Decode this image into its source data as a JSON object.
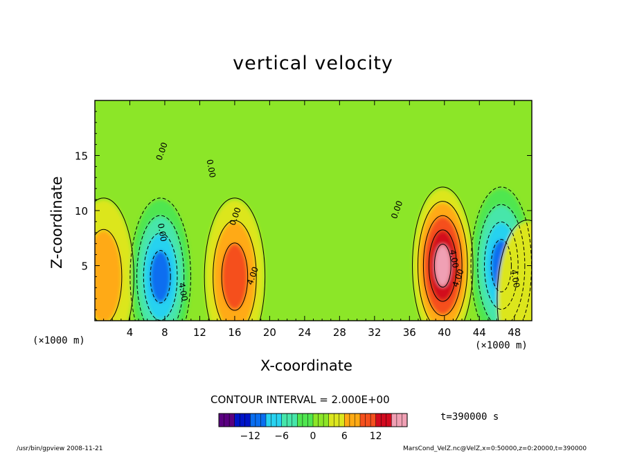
{
  "chart_data": {
    "type": "heatmap",
    "title": "vertical velocity",
    "xlabel": "X-coordinate",
    "ylabel": "Z-coordinate",
    "x_unit": "(×1000 m)",
    "y_unit": "(×1000 m)",
    "xlim": [
      0,
      50
    ],
    "ylim": [
      0,
      20
    ],
    "x_ticks": [
      4,
      8,
      12,
      16,
      20,
      24,
      28,
      32,
      36,
      40,
      44,
      48
    ],
    "y_ticks": [
      5,
      10,
      15
    ],
    "colorbar": {
      "range": [
        -18,
        18
      ],
      "ticks": [
        -12,
        -6,
        0,
        6,
        12
      ],
      "colors": [
        "#5a0080",
        "#0014c8",
        "#0a6ef0",
        "#28d2f0",
        "#46e6aa",
        "#50e650",
        "#8ce628",
        "#dce61e",
        "#ffaa14",
        "#f5501e",
        "#d20a1e",
        "#f0a0b4"
      ]
    },
    "contour_interval_text": "CONTOUR INTERVAL = 2.000E+00",
    "contour_labels": [
      "4.00",
      "4.00",
      "4.00",
      "4.00",
      "4.00",
      "0.00",
      "0.00",
      "0.00",
      "0.00",
      "0.00"
    ],
    "features": [
      {
        "kind": "updraft",
        "x": 1.0,
        "z": 4.0,
        "peak": 7
      },
      {
        "kind": "downdraft",
        "x": 7.5,
        "z": 4.0,
        "peak": -14
      },
      {
        "kind": "updraft",
        "x": 16.0,
        "z": 4.0,
        "peak": 11
      },
      {
        "kind": "updraft",
        "x": 39.8,
        "z": 5.0,
        "peak": 17
      },
      {
        "kind": "downdraft",
        "x": 46.5,
        "z": 5.0,
        "peak": -12
      },
      {
        "kind": "updraft",
        "x": 49.5,
        "z": 2.0,
        "peak": 5
      }
    ],
    "time_text": "t=390000 s"
  },
  "footer": {
    "left": "/usr/bin/gpview   2008-11-21",
    "right": "MarsCond_VelZ.nc@VelZ,x=0:50000,z=0:20000,t=390000"
  }
}
